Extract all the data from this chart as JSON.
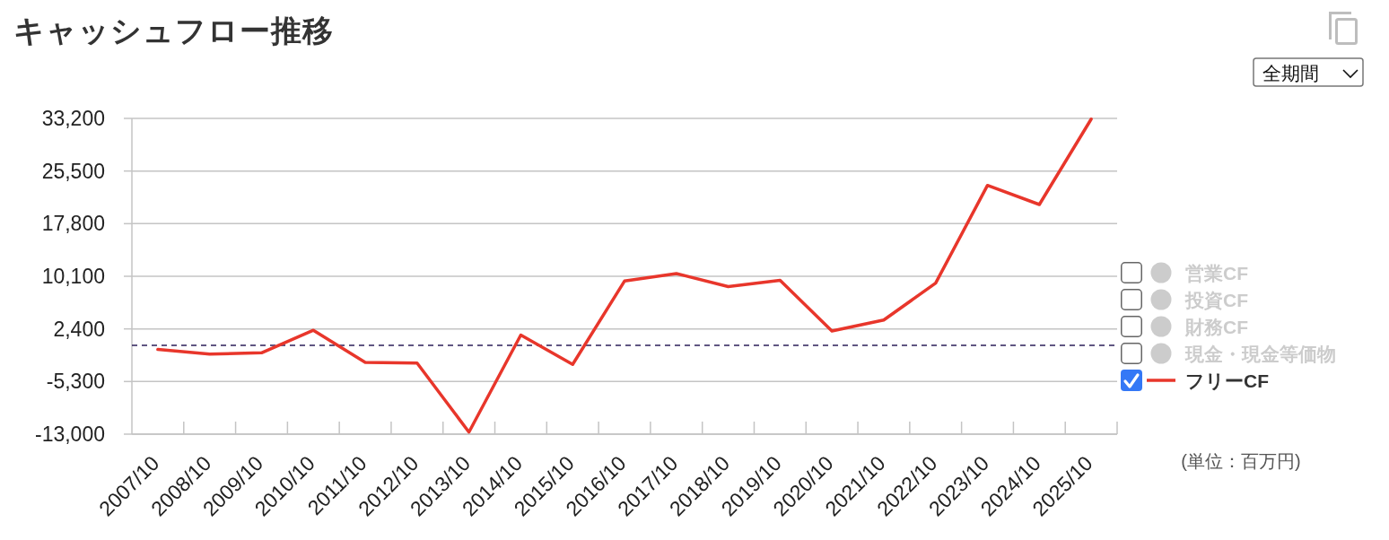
{
  "chart_data": {
    "type": "line",
    "title": "キャッシュフロー推移",
    "categories": [
      "2007/10",
      "2008/10",
      "2009/10",
      "2010/10",
      "2011/10",
      "2012/10",
      "2013/10",
      "2014/10",
      "2015/10",
      "2016/10",
      "2017/10",
      "2018/10",
      "2019/10",
      "2020/10",
      "2021/10",
      "2022/10",
      "2023/10",
      "2024/10",
      "2025/10"
    ],
    "series": [
      {
        "name": "営業CF",
        "color": "#cccccc",
        "values": [
          null,
          null,
          null,
          null,
          null,
          null,
          null,
          null,
          null,
          null,
          null,
          null,
          null,
          null,
          null,
          null,
          null,
          null,
          null
        ]
      },
      {
        "name": "投資CF",
        "color": "#cccccc",
        "values": [
          null,
          null,
          null,
          null,
          null,
          null,
          null,
          null,
          null,
          null,
          null,
          null,
          null,
          null,
          null,
          null,
          null,
          null,
          null
        ]
      },
      {
        "name": "財務CF",
        "color": "#cccccc",
        "values": [
          null,
          null,
          null,
          null,
          null,
          null,
          null,
          null,
          null,
          null,
          null,
          null,
          null,
          null,
          null,
          null,
          null,
          null,
          null
        ]
      },
      {
        "name": "現金・現金等価物",
        "color": "#cccccc",
        "values": [
          null,
          null,
          null,
          null,
          null,
          null,
          null,
          null,
          null,
          null,
          null,
          null,
          null,
          null,
          null,
          null,
          null,
          null,
          null
        ]
      },
      {
        "name": "フリーCF",
        "color": "#e8362b",
        "values": [
          -600,
          -1300,
          -1100,
          2200,
          -2500,
          -2600,
          -12700,
          1500,
          -2800,
          9400,
          10500,
          8600,
          9500,
          2100,
          3700,
          9100,
          23400,
          20600,
          33100
        ]
      }
    ],
    "ylim": [
      -13000,
      33200
    ],
    "yticks": [
      {
        "value": -13000,
        "label": "-13,000"
      },
      {
        "value": -5300,
        "label": "-5,300"
      },
      {
        "value": 2400,
        "label": "2,400"
      },
      {
        "value": 10100,
        "label": "10,100"
      },
      {
        "value": 17800,
        "label": "17,800"
      },
      {
        "value": 25500,
        "label": "25,500"
      },
      {
        "value": 33200,
        "label": "33,200"
      }
    ],
    "grid": "y",
    "legend": "right",
    "ref_lines": [
      {
        "axis": "y",
        "value": 0,
        "color": "#2c1f5a",
        "line_style": "dashed"
      }
    ],
    "annotations": [
      "(単位：百万円)",
      "全期間"
    ]
  }
}
